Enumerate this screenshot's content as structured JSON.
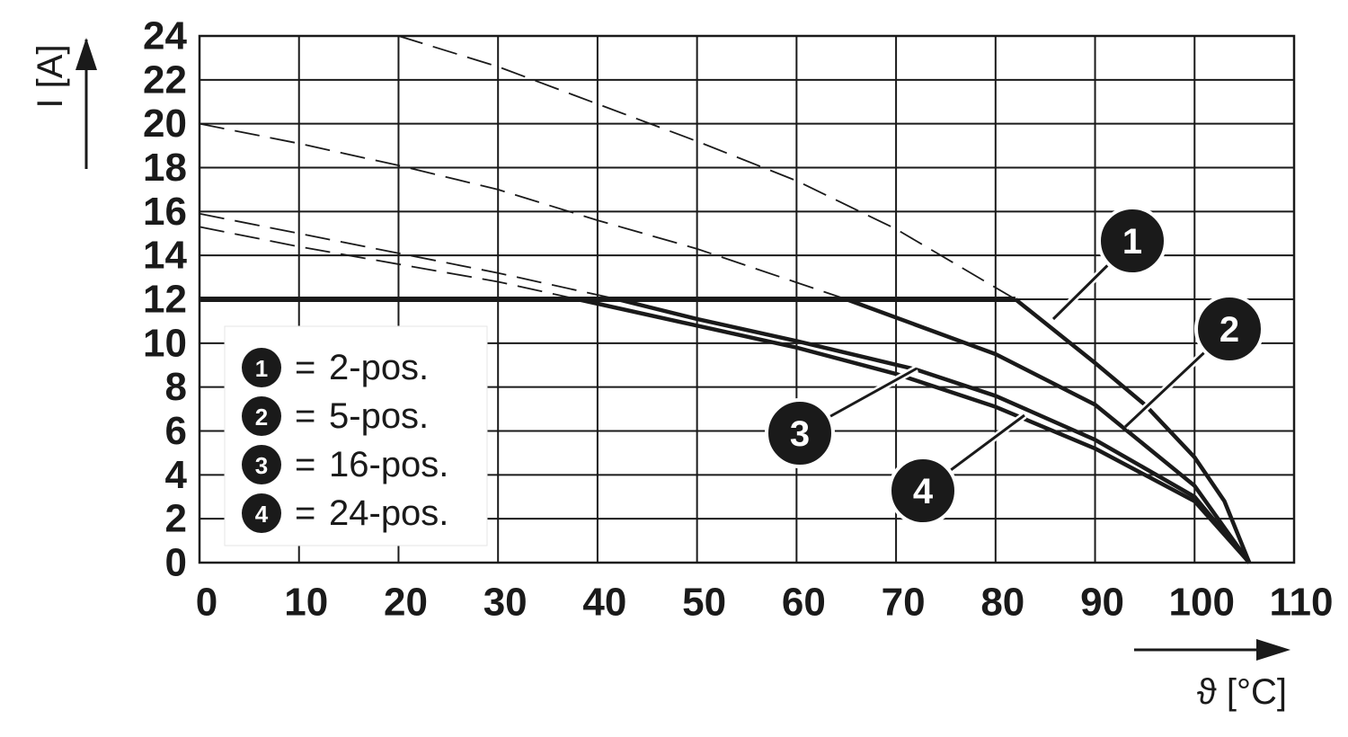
{
  "chart_data": {
    "type": "line",
    "xlabel": "ϑ [°C]",
    "ylabel": "I [A]",
    "xlim": [
      0,
      110
    ],
    "ylim": [
      0,
      24
    ],
    "xticks": [
      0,
      10,
      20,
      30,
      40,
      50,
      60,
      70,
      80,
      90,
      100,
      110
    ],
    "yticks": [
      0,
      2,
      4,
      6,
      8,
      10,
      12,
      14,
      16,
      18,
      20,
      22,
      24
    ],
    "grid": true,
    "color": "#1a1a1a",
    "legend_separator": "=",
    "limit": {
      "x": [
        0,
        82
      ],
      "values": [
        12,
        12
      ]
    },
    "series": [
      {
        "name": "2-pos.",
        "label": "1",
        "x": [
          20,
          30,
          40,
          50,
          60,
          70,
          82,
          90,
          95,
          100,
          103,
          105.5
        ],
        "values": [
          24,
          22.6,
          20.9,
          19.2,
          17.4,
          15.2,
          12,
          9.1,
          7.2,
          4.8,
          2.8,
          0
        ]
      },
      {
        "name": "5-pos.",
        "label": "2",
        "x": [
          0,
          10,
          20,
          30,
          40,
          50,
          65,
          80,
          90,
          100,
          105.5
        ],
        "values": [
          20,
          19.1,
          18.1,
          17.0,
          15.6,
          14.3,
          12,
          9.5,
          7.2,
          3.5,
          0
        ]
      },
      {
        "name": "16-pos.",
        "label": "3",
        "x": [
          0,
          10,
          20,
          30,
          42,
          50,
          60,
          72,
          80,
          90,
          100,
          105.5
        ],
        "values": [
          15.9,
          15.0,
          14.1,
          13.2,
          12,
          11.1,
          10.1,
          8.8,
          7.6,
          5.6,
          3.0,
          0
        ]
      },
      {
        "name": "24-pos.",
        "label": "4",
        "x": [
          0,
          10,
          20,
          30,
          38,
          50,
          60,
          70,
          80,
          90,
          100,
          105.5
        ],
        "values": [
          15.3,
          14.4,
          13.6,
          12.8,
          12,
          10.8,
          9.8,
          8.6,
          7.1,
          5.2,
          2.8,
          0
        ]
      }
    ]
  }
}
